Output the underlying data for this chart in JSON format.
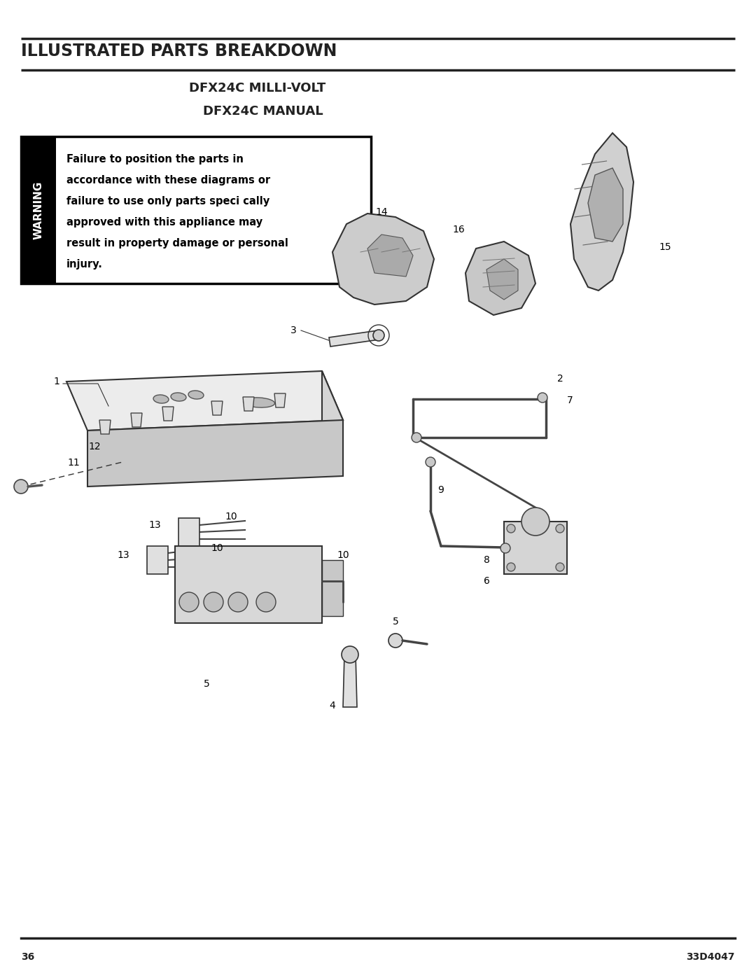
{
  "page_title": "ILLUSTRATED PARTS BREAKDOWN",
  "subtitle1": "DFX24C MILLI-VOLT",
  "subtitle2": "DFX24C MANUAL",
  "warning_label": "WARNING",
  "warning_text_lines": [
    "Failure to position the parts in",
    "accordance with these diagrams or",
    "failure to use only parts speci cally",
    "approved with this appliance may",
    "result in property damage or personal",
    "injury."
  ],
  "page_number": "36",
  "doc_number": "33D4047",
  "bg_color": "#ffffff",
  "text_color": "#1a1a1a",
  "line_color": "#222222"
}
